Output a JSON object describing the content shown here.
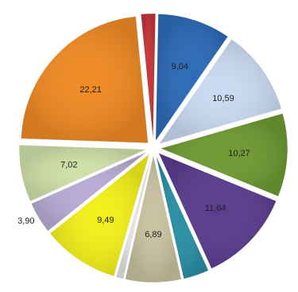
{
  "chart_data": {
    "type": "pie",
    "exploded": true,
    "slices": [
      {
        "value": 9.04,
        "label": "9,04",
        "color": "#2e6bb8"
      },
      {
        "value": 10.59,
        "label": "10,59",
        "color": "#c9daf2"
      },
      {
        "value": 10.27,
        "label": "10,27",
        "color": "#6f9a33"
      },
      {
        "value": 11.64,
        "label": "11,64",
        "color": "#5b3d8f"
      },
      {
        "value": 3.19,
        "label": "",
        "color": "#2b8fa6"
      },
      {
        "value": 6.89,
        "label": "6,89",
        "color": "#c8c2a0"
      },
      {
        "value": 0.9,
        "label": "",
        "color": "#e4e4e4"
      },
      {
        "value": 9.49,
        "label": "9,49",
        "color": "#f3f01a"
      },
      {
        "value": 3.9,
        "label": "3,90",
        "color": "#b8acd6"
      },
      {
        "value": 7.02,
        "label": "7,02",
        "color": "#cfe0a8"
      },
      {
        "value": 22.21,
        "label": "22,21",
        "color": "#f08a24"
      },
      {
        "value": 1.8,
        "label": "",
        "color": "#c7363a"
      }
    ]
  }
}
